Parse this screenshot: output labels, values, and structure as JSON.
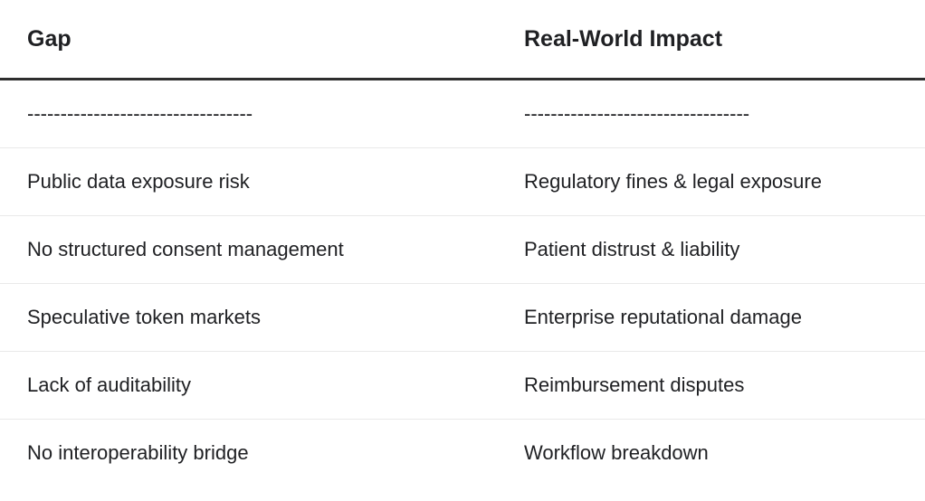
{
  "table": {
    "columns": [
      {
        "id": "gap",
        "header": "Gap",
        "separator": "----------------------------------"
      },
      {
        "id": "impact",
        "header": "Real-World Impact",
        "separator": "----------------------------------"
      }
    ],
    "rows": [
      {
        "gap": "Public data exposure risk",
        "impact": "Regulatory fines & legal exposure"
      },
      {
        "gap": "No structured consent management",
        "impact": "Patient distrust & liability"
      },
      {
        "gap": "Speculative token markets",
        "impact": "Enterprise reputational damage"
      },
      {
        "gap": "Lack of auditability",
        "impact": "Reimbursement disputes"
      },
      {
        "gap": "No interoperability bridge",
        "impact": "Workflow breakdown"
      }
    ]
  }
}
